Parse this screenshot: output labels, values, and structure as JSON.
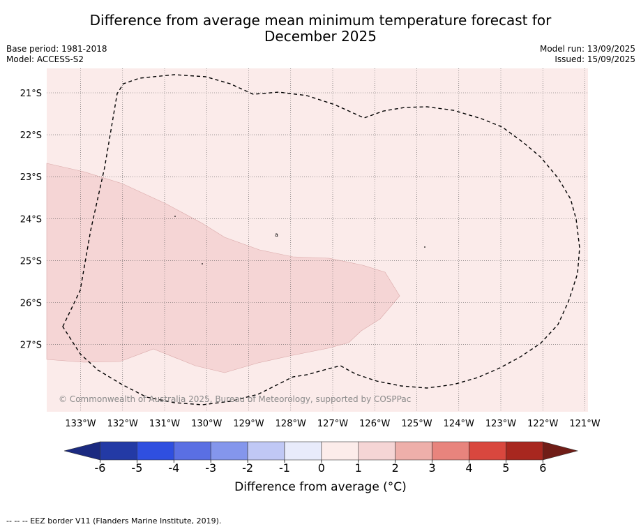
{
  "title": {
    "line1": "Difference from average mean minimum temperature forecast for",
    "line2": "December 2025"
  },
  "info_left": {
    "base_period": "Base period: 1981-2018",
    "model": "Model: ACCESS-S2"
  },
  "info_right": {
    "model_run": "Model run: 13/09/2025",
    "issued": "Issued: 15/09/2025"
  },
  "map": {
    "lon_labels": [
      "133°W",
      "132°W",
      "131°W",
      "130°W",
      "129°W",
      "128°W",
      "127°W",
      "126°W",
      "125°W",
      "124°W",
      "123°W",
      "122°W",
      "121°W"
    ],
    "lat_labels": [
      "21°S",
      "22°S",
      "23°S",
      "24°S",
      "25°S",
      "26°S",
      "27°S"
    ],
    "copyright": "© Commonwealth of Australia 2025, Bureau of Meteorology, supported by COSPPac",
    "region_colors": {
      "anomaly_0_to_1": "#fbebea",
      "anomaly_1_to_2": "#f5d5d5"
    }
  },
  "colorbar": {
    "ticks": [
      "-6",
      "-5",
      "-4",
      "-3",
      "-2",
      "-1",
      "0",
      "1",
      "2",
      "3",
      "4",
      "5",
      "6"
    ],
    "colors": [
      "#233aa5",
      "#2f4fe0",
      "#5a6fe3",
      "#8496ec",
      "#c0c8f5",
      "#e8ebfb",
      "#fcecea",
      "#f5d5d5",
      "#eeafaa",
      "#e8847d",
      "#d9473e",
      "#a8271f"
    ],
    "under_color": "#1b2a80",
    "over_color": "#701d17",
    "title": "Difference from average (°C)"
  },
  "footer": "--  --  -- EEZ border V11 (Flanders Marine Institute, 2019)."
}
